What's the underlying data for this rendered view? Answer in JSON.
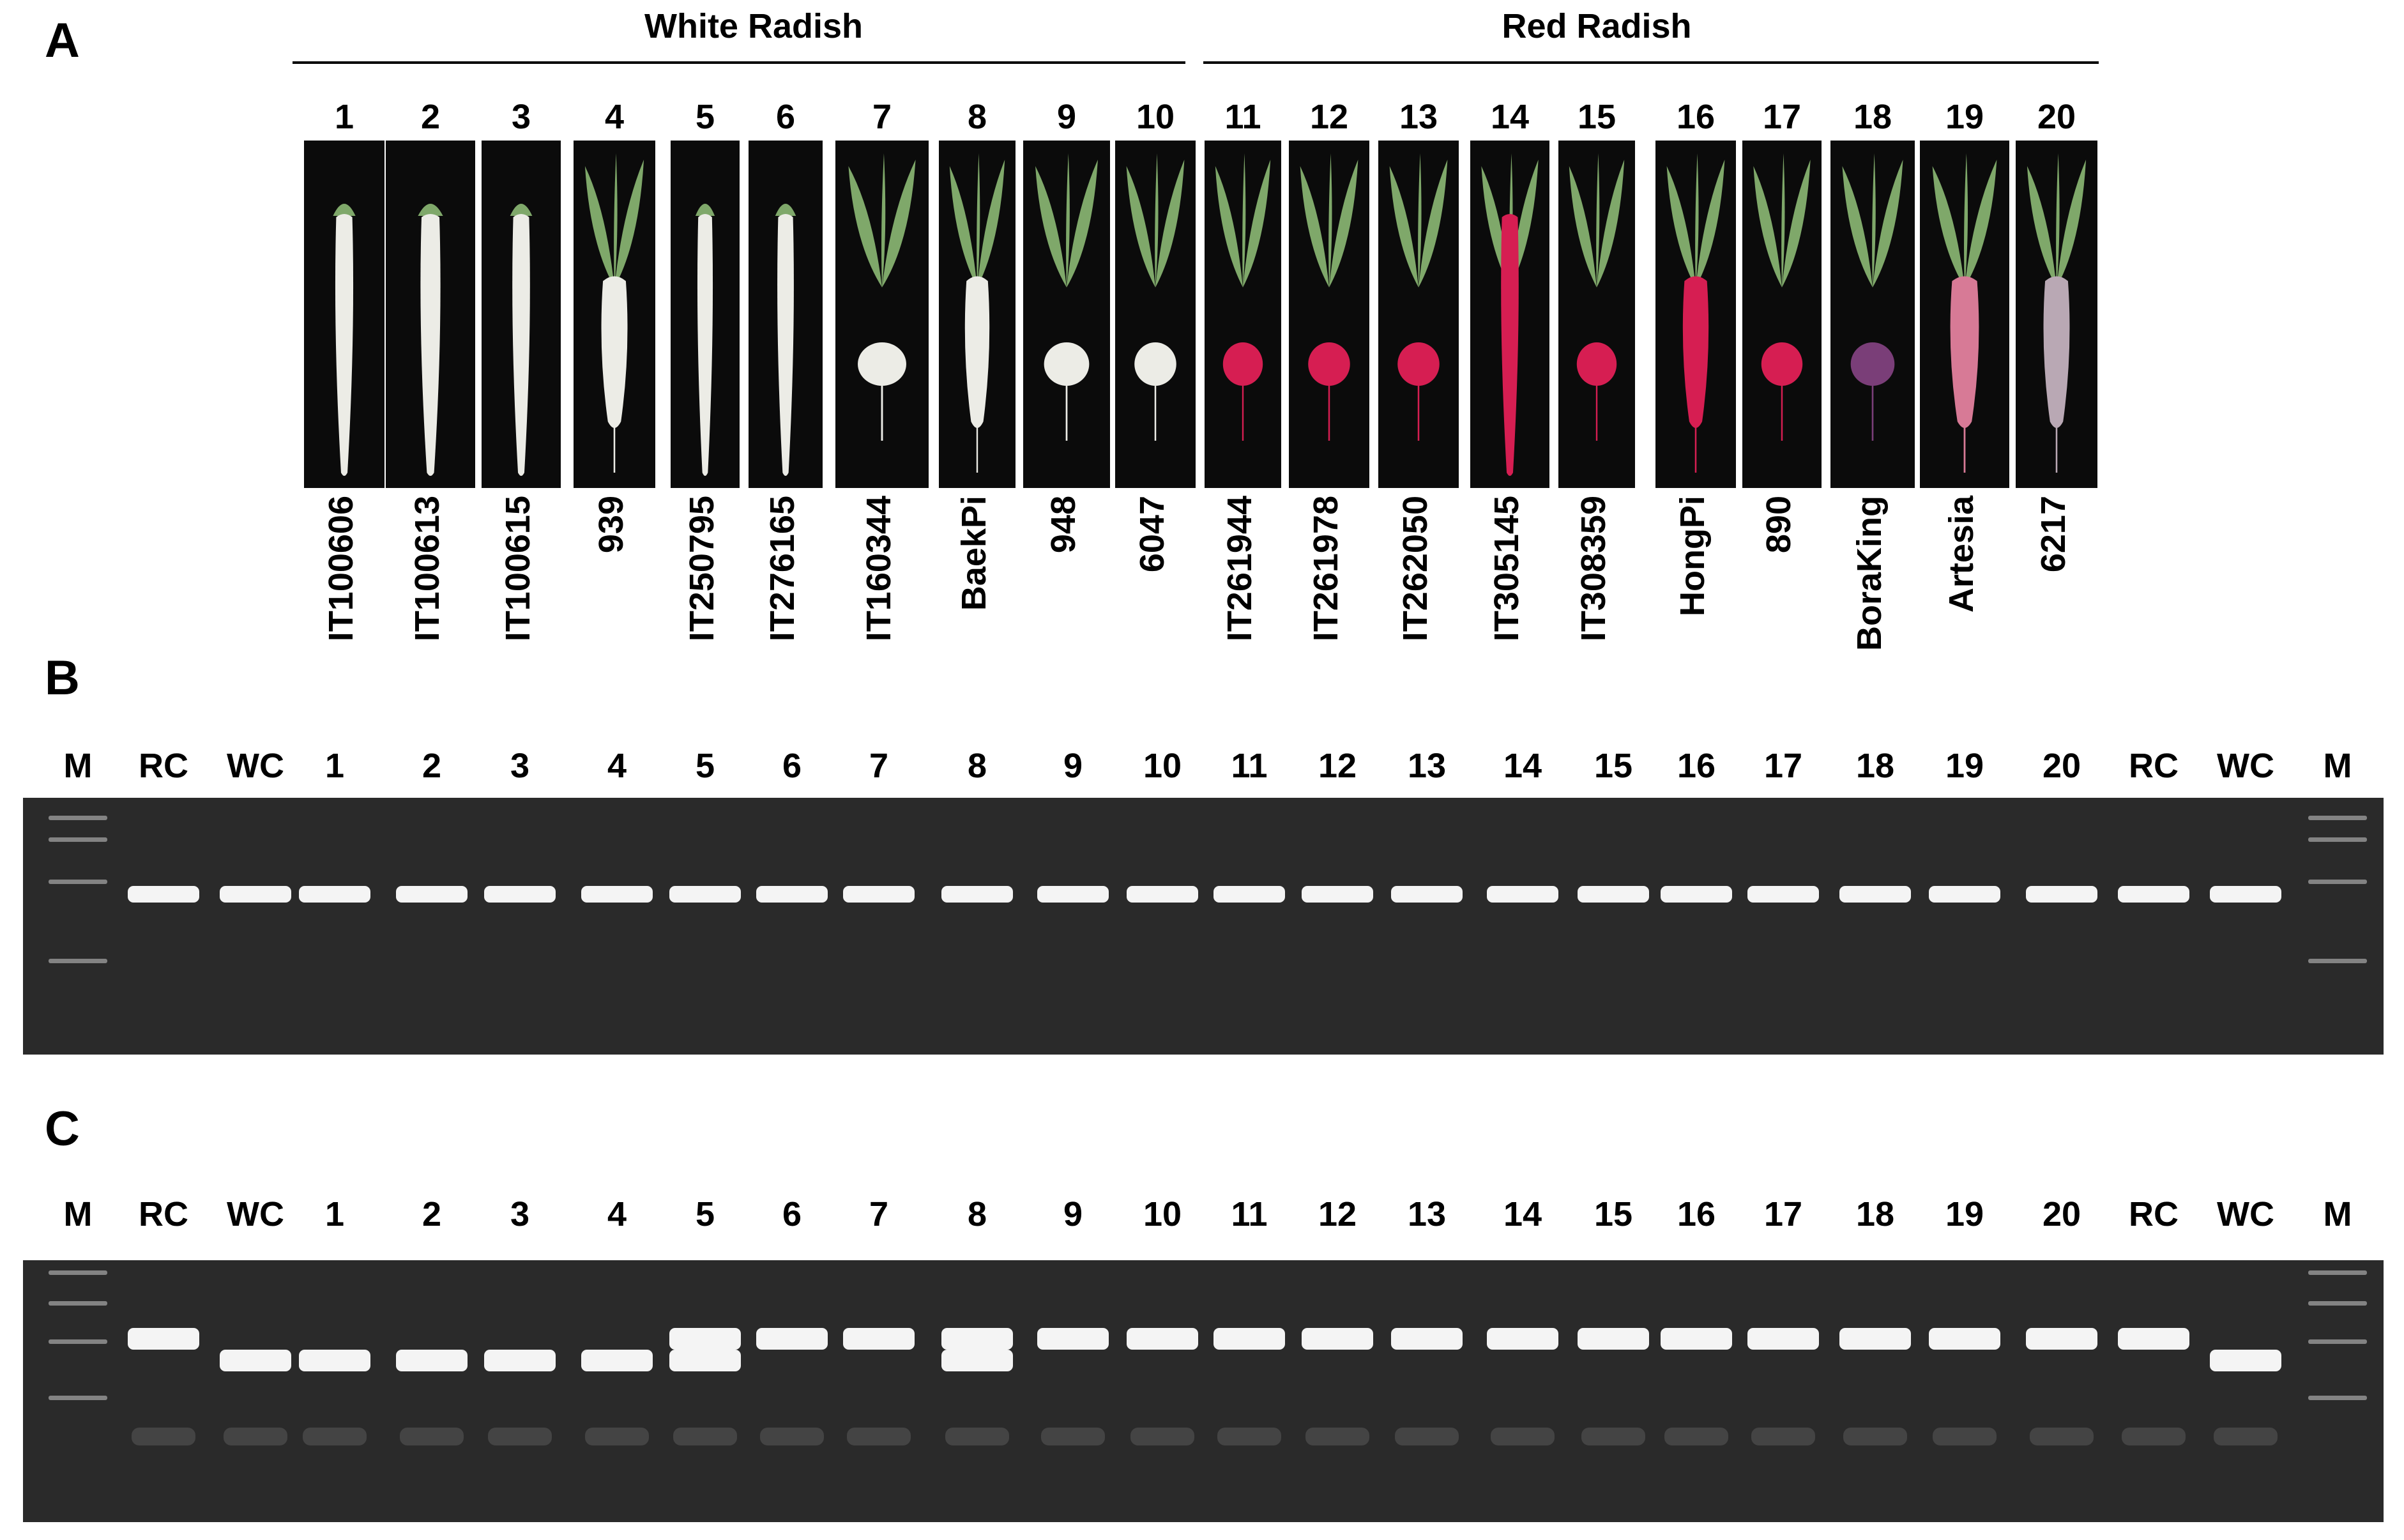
{
  "panel_a": {
    "letter": "A",
    "groups": {
      "white": "White Radish",
      "red": "Red Radish"
    },
    "samples": [
      {
        "num": "1",
        "name": "IT100606",
        "color": "white",
        "shape": "long"
      },
      {
        "num": "2",
        "name": "IT100613",
        "color": "white",
        "shape": "long"
      },
      {
        "num": "3",
        "name": "IT100615",
        "color": "white",
        "shape": "long"
      },
      {
        "num": "4",
        "name": "939",
        "color": "white",
        "shape": "medium"
      },
      {
        "num": "5",
        "name": "IT250795",
        "color": "white",
        "shape": "long"
      },
      {
        "num": "6",
        "name": "IT276165",
        "color": "white",
        "shape": "long"
      },
      {
        "num": "7",
        "name": "IT160344",
        "color": "white",
        "shape": "round"
      },
      {
        "num": "8",
        "name": "BaekPi",
        "color": "white",
        "shape": "medium"
      },
      {
        "num": "9",
        "name": "948",
        "color": "white",
        "shape": "round"
      },
      {
        "num": "10",
        "name": "6047",
        "color": "white",
        "shape": "round"
      },
      {
        "num": "11",
        "name": "IT261944",
        "color": "red",
        "shape": "round"
      },
      {
        "num": "12",
        "name": "IT261978",
        "color": "red",
        "shape": "round"
      },
      {
        "num": "13",
        "name": "IT262050",
        "color": "red",
        "shape": "round"
      },
      {
        "num": "14",
        "name": "IT305145",
        "color": "red",
        "shape": "long"
      },
      {
        "num": "15",
        "name": "IT308359",
        "color": "red",
        "shape": "round"
      },
      {
        "num": "16",
        "name": "HongPi",
        "color": "red",
        "shape": "medium"
      },
      {
        "num": "17",
        "name": "890",
        "color": "red",
        "shape": "round"
      },
      {
        "num": "18",
        "name": "BoraKing",
        "color": "purple",
        "shape": "round"
      },
      {
        "num": "19",
        "name": "Artesia",
        "color": "pink",
        "shape": "medium"
      },
      {
        "num": "20",
        "name": "6217",
        "color": "mixed",
        "shape": "medium"
      }
    ]
  },
  "panel_b": {
    "letter": "B"
  },
  "panel_c": {
    "letter": "C"
  },
  "gel_lanes": [
    "M",
    "RC",
    "WC",
    "1",
    "2",
    "3",
    "4",
    "5",
    "6",
    "7",
    "8",
    "9",
    "10",
    "11",
    "12",
    "13",
    "14",
    "15",
    "16",
    "17",
    "18",
    "19",
    "20",
    "RC",
    "WC",
    "M"
  ],
  "gel_b_bands": [
    "ladder",
    "upper",
    "upper",
    "upper",
    "upper",
    "upper",
    "upper",
    "upper",
    "upper",
    "upper",
    "upper",
    "upper",
    "upper",
    "upper",
    "upper",
    "upper",
    "upper",
    "upper",
    "upper",
    "upper",
    "upper",
    "upper",
    "upper",
    "upper",
    "upper",
    "ladder"
  ],
  "gel_c_bands": [
    "ladder",
    "upper",
    "lower",
    "lower",
    "lower",
    "lower",
    "lower",
    "both",
    "upper",
    "upper",
    "both",
    "upper",
    "upper",
    "upper",
    "upper",
    "upper",
    "upper",
    "upper",
    "upper",
    "upper",
    "upper",
    "upper",
    "upper",
    "upper",
    "lower",
    "ladder"
  ],
  "colors": {
    "white_root": "#ecece6",
    "red_root": "#d61e52",
    "purple_root": "#7a3e78",
    "pink_root": "#d77a96",
    "leaf": "#7fa86a",
    "gel_background": "#2a2a2a",
    "band": "#f4f4f4"
  }
}
